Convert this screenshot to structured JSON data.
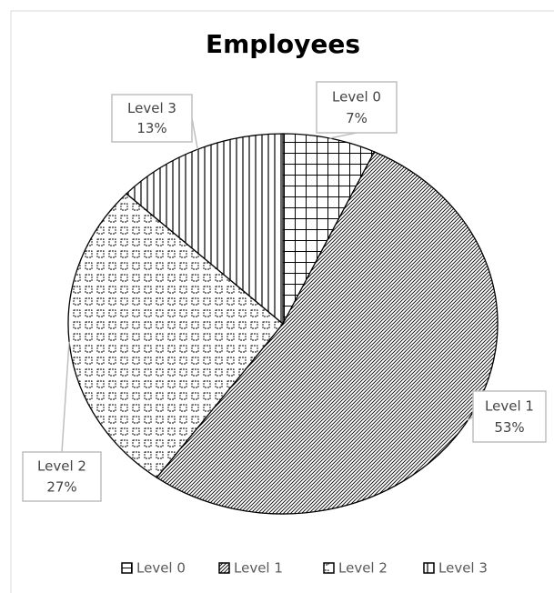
{
  "chart_data": {
    "type": "pie",
    "title": "Employees",
    "categories": [
      "Level 0",
      "Level 1",
      "Level 2",
      "Level 3"
    ],
    "values": [
      7,
      53,
      27,
      13
    ],
    "value_labels": [
      "7%",
      "53%",
      "27%",
      "13%"
    ],
    "legend": "bottom"
  }
}
